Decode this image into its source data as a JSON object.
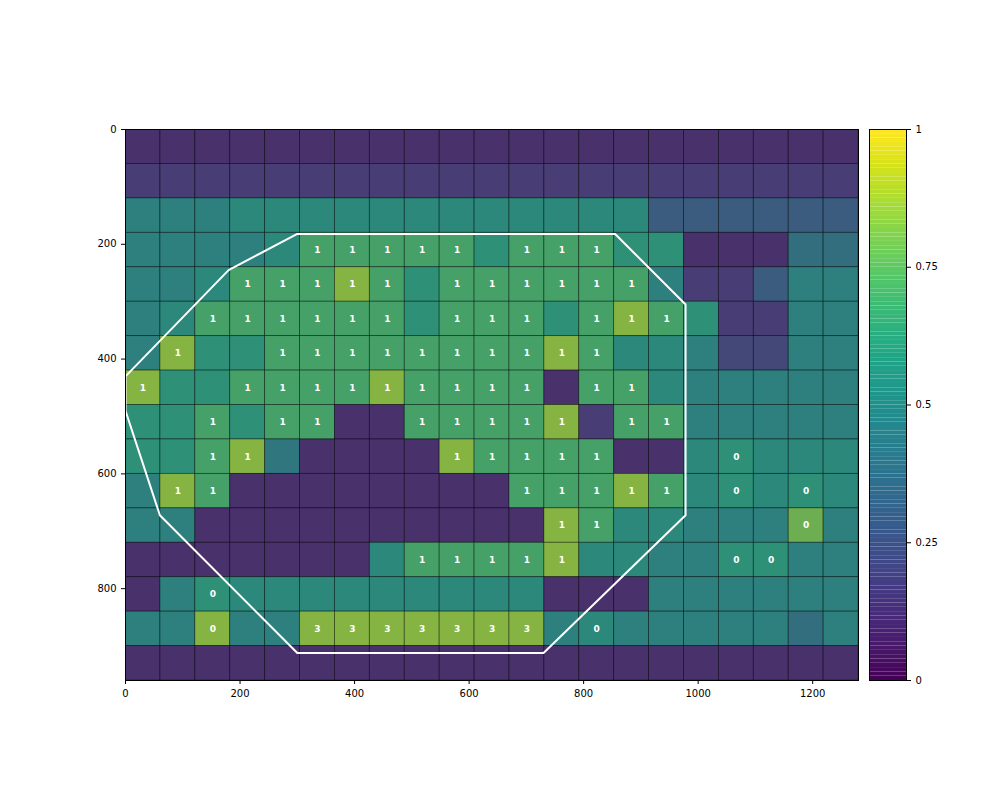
{
  "chart_data": {
    "type": "heatmap",
    "xlim": [
      0,
      1280
    ],
    "ylim": [
      960,
      0
    ],
    "xticks": [
      0,
      200,
      400,
      600,
      800,
      1000,
      1200
    ],
    "yticks": [
      0,
      200,
      400,
      600,
      800
    ],
    "color": "viridis",
    "colorbar": {
      "range": [
        0,
        1
      ],
      "ticks": [
        0,
        0.25,
        0.5,
        0.75,
        1
      ]
    },
    "cells": [
      [
        0.1,
        0.1,
        0.1,
        0.1,
        0.1,
        0.1,
        0.1,
        0.1,
        0.1,
        0.1,
        0.1,
        0.1,
        0.1,
        0.1,
        0.1,
        0.1,
        0.1,
        0.1,
        0.1,
        0.1,
        0.1
      ],
      [
        0.15,
        0.15,
        0.15,
        0.15,
        0.15,
        0.15,
        0.15,
        0.15,
        0.15,
        0.15,
        0.15,
        0.15,
        0.15,
        0.15,
        0.15,
        0.15,
        0.15,
        0.15,
        0.15,
        0.15,
        0.15
      ],
      [
        0.5,
        0.5,
        0.5,
        0.55,
        0.55,
        0.55,
        0.55,
        0.55,
        0.55,
        0.55,
        0.55,
        0.55,
        0.55,
        0.55,
        0.55,
        0.3,
        0.3,
        0.3,
        0.3,
        0.3,
        0.3
      ],
      [
        0.5,
        0.5,
        0.5,
        0.5,
        0.55,
        0.7,
        0.7,
        0.7,
        0.7,
        0.7,
        0.6,
        0.7,
        0.7,
        0.7,
        0.6,
        0.6,
        0.1,
        0.1,
        0.1,
        0.4,
        0.4
      ],
      [
        0.5,
        0.5,
        0.55,
        0.7,
        0.7,
        0.7,
        0.85,
        0.7,
        0.6,
        0.7,
        0.7,
        0.7,
        0.7,
        0.7,
        0.7,
        0.5,
        0.15,
        0.15,
        0.3,
        0.5,
        0.5
      ],
      [
        0.5,
        0.55,
        0.7,
        0.7,
        0.7,
        0.7,
        0.7,
        0.7,
        0.6,
        0.7,
        0.7,
        0.7,
        0.6,
        0.7,
        0.85,
        0.7,
        0.6,
        0.15,
        0.15,
        0.5,
        0.5
      ],
      [
        0.5,
        0.85,
        0.6,
        0.6,
        0.7,
        0.7,
        0.7,
        0.7,
        0.7,
        0.7,
        0.7,
        0.7,
        0.85,
        0.7,
        0.55,
        0.55,
        0.5,
        0.2,
        0.2,
        0.5,
        0.5
      ],
      [
        0.85,
        0.6,
        0.6,
        0.7,
        0.7,
        0.7,
        0.7,
        0.85,
        0.7,
        0.7,
        0.7,
        0.7,
        0.1,
        0.7,
        0.7,
        0.55,
        0.5,
        0.5,
        0.5,
        0.5,
        0.5
      ],
      [
        0.6,
        0.6,
        0.7,
        0.6,
        0.7,
        0.7,
        0.1,
        0.1,
        0.7,
        0.7,
        0.7,
        0.7,
        0.85,
        0.15,
        0.7,
        0.7,
        0.5,
        0.5,
        0.5,
        0.5,
        0.5
      ],
      [
        0.6,
        0.6,
        0.7,
        0.85,
        0.45,
        0.1,
        0.1,
        0.1,
        0.1,
        0.85,
        0.7,
        0.7,
        0.7,
        0.7,
        0.1,
        0.1,
        0.55,
        0.6,
        0.55,
        0.55,
        0.55
      ],
      [
        0.5,
        0.85,
        0.7,
        0.1,
        0.1,
        0.1,
        0.1,
        0.1,
        0.1,
        0.1,
        0.1,
        0.7,
        0.7,
        0.7,
        0.85,
        0.7,
        0.55,
        0.6,
        0.55,
        0.6,
        0.55
      ],
      [
        0.5,
        0.5,
        0.1,
        0.1,
        0.1,
        0.1,
        0.1,
        0.1,
        0.1,
        0.1,
        0.1,
        0.1,
        0.85,
        0.7,
        0.55,
        0.55,
        0.5,
        0.5,
        0.5,
        0.8,
        0.5
      ],
      [
        0.1,
        0.1,
        0.1,
        0.1,
        0.1,
        0.1,
        0.1,
        0.55,
        0.7,
        0.7,
        0.7,
        0.7,
        0.85,
        0.55,
        0.55,
        0.5,
        0.5,
        0.6,
        0.6,
        0.5,
        0.5
      ],
      [
        0.1,
        0.5,
        0.6,
        0.55,
        0.55,
        0.55,
        0.55,
        0.55,
        0.55,
        0.55,
        0.55,
        0.55,
        0.1,
        0.1,
        0.1,
        0.5,
        0.5,
        0.5,
        0.5,
        0.5,
        0.5
      ],
      [
        0.5,
        0.5,
        0.85,
        0.5,
        0.5,
        0.85,
        0.85,
        0.85,
        0.85,
        0.85,
        0.85,
        0.85,
        0.5,
        0.55,
        0.5,
        0.5,
        0.5,
        0.5,
        0.5,
        0.4,
        0.5
      ],
      [
        0.1,
        0.1,
        0.1,
        0.1,
        0.1,
        0.1,
        0.1,
        0.1,
        0.1,
        0.1,
        0.1,
        0.1,
        0.1,
        0.1,
        0.1,
        0.1,
        0.1,
        0.1,
        0.1,
        0.1,
        0.1
      ]
    ],
    "cell_labels": [
      [
        null,
        null,
        null,
        null,
        null,
        null,
        null,
        null,
        null,
        null,
        null,
        null,
        null,
        null,
        null,
        null,
        null,
        null,
        null,
        null,
        null
      ],
      [
        null,
        null,
        null,
        null,
        null,
        null,
        null,
        null,
        null,
        null,
        null,
        null,
        null,
        null,
        null,
        null,
        null,
        null,
        null,
        null,
        null
      ],
      [
        null,
        null,
        null,
        null,
        null,
        null,
        null,
        null,
        null,
        null,
        null,
        null,
        null,
        null,
        null,
        null,
        null,
        null,
        null,
        null,
        null
      ],
      [
        null,
        null,
        null,
        null,
        null,
        1,
        1,
        1,
        1,
        1,
        null,
        1,
        1,
        1,
        null,
        null,
        null,
        null,
        null,
        null,
        null
      ],
      [
        null,
        null,
        null,
        1,
        1,
        1,
        1,
        1,
        null,
        1,
        1,
        1,
        1,
        1,
        1,
        null,
        null,
        null,
        null,
        null,
        null
      ],
      [
        null,
        null,
        1,
        1,
        1,
        1,
        1,
        1,
        null,
        1,
        1,
        1,
        null,
        1,
        1,
        1,
        null,
        null,
        null,
        null,
        null
      ],
      [
        null,
        1,
        null,
        null,
        1,
        1,
        1,
        1,
        1,
        1,
        1,
        1,
        1,
        1,
        null,
        null,
        null,
        null,
        null,
        null,
        null
      ],
      [
        1,
        null,
        null,
        1,
        1,
        1,
        1,
        1,
        1,
        1,
        1,
        1,
        null,
        1,
        1,
        null,
        null,
        null,
        null,
        null,
        null
      ],
      [
        null,
        null,
        1,
        null,
        1,
        1,
        null,
        null,
        1,
        1,
        1,
        1,
        1,
        null,
        1,
        1,
        null,
        null,
        null,
        null,
        null
      ],
      [
        null,
        null,
        1,
        1,
        null,
        null,
        null,
        null,
        null,
        1,
        1,
        1,
        1,
        1,
        null,
        null,
        null,
        0,
        null,
        null,
        null
      ],
      [
        null,
        1,
        1,
        null,
        null,
        null,
        null,
        null,
        null,
        null,
        null,
        1,
        1,
        1,
        1,
        1,
        null,
        0,
        null,
        0,
        null
      ],
      [
        null,
        null,
        null,
        null,
        null,
        null,
        null,
        null,
        null,
        null,
        null,
        null,
        1,
        1,
        null,
        null,
        null,
        null,
        null,
        0,
        null
      ],
      [
        null,
        null,
        null,
        null,
        null,
        null,
        null,
        null,
        1,
        1,
        1,
        1,
        1,
        null,
        null,
        null,
        null,
        0,
        0,
        null,
        null
      ],
      [
        null,
        null,
        0,
        null,
        null,
        null,
        null,
        null,
        null,
        null,
        null,
        null,
        null,
        null,
        null,
        null,
        null,
        null,
        null,
        null,
        null
      ],
      [
        null,
        null,
        0,
        null,
        null,
        3,
        3,
        3,
        3,
        3,
        3,
        3,
        null,
        0,
        null,
        null,
        null,
        null,
        null,
        null,
        null
      ],
      [
        null,
        null,
        null,
        null,
        null,
        null,
        null,
        null,
        null,
        null,
        null,
        null,
        null,
        null,
        null,
        null,
        null,
        null,
        null,
        null,
        null
      ]
    ],
    "polygon": [
      [
        0,
        430
      ],
      [
        180,
        245
      ],
      [
        300,
        182
      ],
      [
        855,
        182
      ],
      [
        978,
        305
      ],
      [
        978,
        672
      ],
      [
        730,
        912
      ],
      [
        300,
        912
      ],
      [
        60,
        672
      ],
      [
        0,
        490
      ]
    ]
  }
}
